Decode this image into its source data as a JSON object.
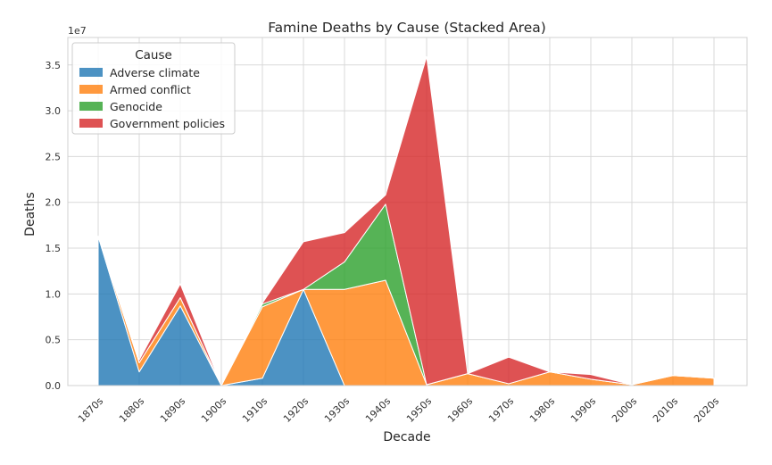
{
  "chart_data": {
    "type": "area",
    "stacked": true,
    "title": "Famine Deaths by Cause (Stacked Area)",
    "xlabel": "Decade",
    "ylabel": "Deaths",
    "y_multiplier_label": "1e7",
    "categories": [
      "1870s",
      "1880s",
      "1890s",
      "1900s",
      "1910s",
      "1920s",
      "1930s",
      "1940s",
      "1950s",
      "1960s",
      "1970s",
      "1980s",
      "1990s",
      "2000s",
      "2010s",
      "2020s"
    ],
    "yticks": [
      0,
      5000000,
      10000000,
      15000000,
      20000000,
      25000000,
      30000000,
      35000000
    ],
    "ytick_labels": [
      "0.0",
      "0.5",
      "1.0",
      "1.5",
      "2.0",
      "2.5",
      "3.0",
      "3.5"
    ],
    "ylim": [
      0,
      38000000
    ],
    "grid": true,
    "legend": {
      "title": "Cause",
      "placement": "top-left"
    },
    "series": [
      {
        "name": "Adverse climate",
        "color": "#1f77b4",
        "values": [
          16300000,
          1500000,
          8700000,
          0,
          800000,
          10500000,
          0,
          0,
          0,
          0,
          0,
          0,
          0,
          0,
          0,
          0
        ]
      },
      {
        "name": "Armed conflict",
        "color": "#ff7f0e",
        "values": [
          0,
          1000000,
          900000,
          0,
          7800000,
          0,
          10500000,
          11500000,
          100000,
          1300000,
          200000,
          1500000,
          700000,
          100000,
          1100000,
          800000
        ]
      },
      {
        "name": "Genocide",
        "color": "#2ca02c",
        "values": [
          0,
          0,
          0,
          0,
          300000,
          0,
          3000000,
          8300000,
          0,
          0,
          0,
          0,
          0,
          0,
          0,
          0
        ]
      },
      {
        "name": "Government policies",
        "color": "#d62728",
        "values": [
          0,
          300000,
          1500000,
          0,
          100000,
          5200000,
          3200000,
          1000000,
          35800000,
          0,
          2900000,
          0,
          500000,
          0,
          0,
          0
        ]
      }
    ]
  }
}
